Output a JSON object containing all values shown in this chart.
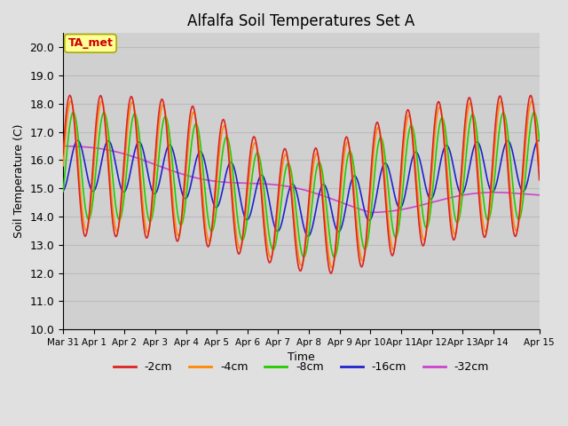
{
  "title": "Alfalfa Soil Temperatures Set A",
  "xlabel": "Time",
  "ylabel": "Soil Temperature (C)",
  "ylim": [
    10.0,
    20.5
  ],
  "yticks": [
    10.0,
    11.0,
    12.0,
    13.0,
    14.0,
    15.0,
    16.0,
    17.0,
    18.0,
    19.0,
    20.0
  ],
  "fig_facecolor": "#e0e0e0",
  "ax_facecolor": "#d0d0d0",
  "colors": {
    "-2cm": "#dd2222",
    "-4cm": "#ff8800",
    "-8cm": "#22cc00",
    "-16cm": "#2222cc",
    "-32cm": "#cc44cc"
  },
  "legend_labels": [
    "-2cm",
    "-4cm",
    "-8cm",
    "-16cm",
    "-32cm"
  ],
  "ta_met_label": "TA_met",
  "ta_met_color": "#cc0000",
  "ta_met_bg": "#ffff99",
  "ta_met_edge": "#aaaa00",
  "n_points": 500,
  "start_day": 0,
  "end_day": 15.5,
  "xtick_positions": [
    0,
    1,
    2,
    3,
    4,
    5,
    6,
    7,
    8,
    9,
    10,
    11,
    12,
    13,
    14,
    15.5
  ],
  "xtick_labels": [
    "Mar 31",
    "Apr 1",
    "Apr 2",
    "Apr 3",
    "Apr 4",
    "Apr 5",
    "Apr 6",
    "Apr 7",
    "Apr 8",
    "Apr 9",
    "Apr 10",
    "Apr 11",
    "Apr 12",
    "Apr 13",
    "Apr 14",
    "Apr 15"
  ],
  "grid_color": "#bbbbbb",
  "linewidth": 1.2
}
